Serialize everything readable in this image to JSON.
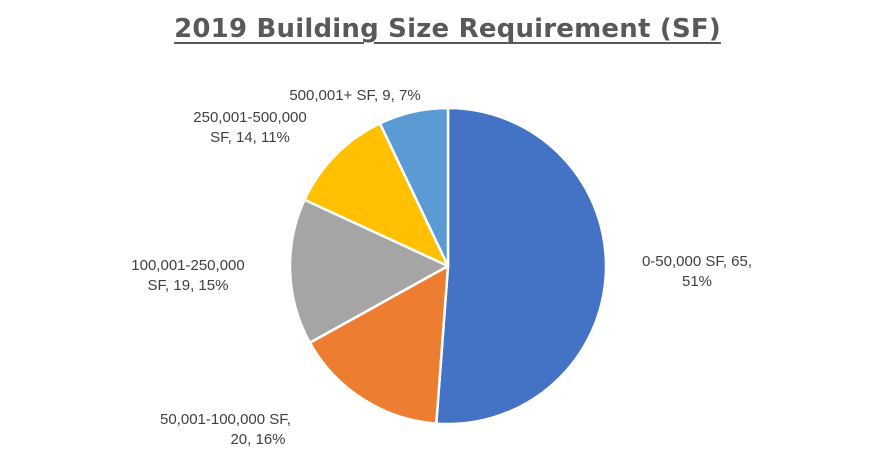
{
  "chart_data": {
    "type": "pie",
    "title": "2019 Building Size Requirement (SF)",
    "slices": [
      {
        "name": "0-50,000 SF",
        "value": 65,
        "percent": 51,
        "color": "#4472C4",
        "label_lines": [
          "0-50,000 SF, 65,",
          "51%"
        ]
      },
      {
        "name": "50,001-100,000 SF",
        "value": 20,
        "percent": 16,
        "color": "#ED7D31",
        "label_lines": [
          "50,001-100,000 SF,",
          "20, 16%"
        ]
      },
      {
        "name": "100,001-250,000 SF",
        "value": 19,
        "percent": 15,
        "color": "#A5A5A5",
        "label_lines": [
          "100,001-250,000",
          "SF, 19, 15%"
        ]
      },
      {
        "name": "250,001-500,000 SF",
        "value": 14,
        "percent": 11,
        "color": "#FFC000",
        "label_lines": [
          "250,001-500,000",
          "SF, 14, 11%"
        ]
      },
      {
        "name": "500,001+ SF",
        "value": 9,
        "percent": 7,
        "color": "#5B9BD5",
        "label_lines": [
          "500,001+ SF, 9, 7%"
        ]
      }
    ],
    "start_angle": "12 o'clock",
    "direction": "clockwise",
    "legend": "none",
    "slice_border_color": "#ffffff"
  }
}
